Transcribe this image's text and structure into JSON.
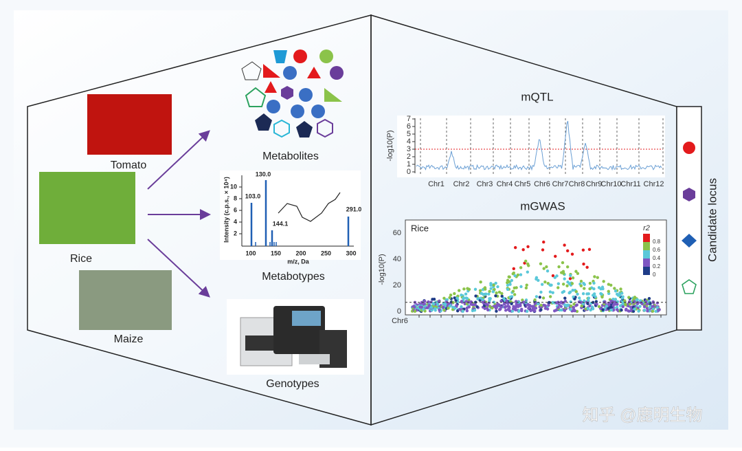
{
  "species": [
    {
      "label": "Tomato"
    },
    {
      "label": "Rice"
    },
    {
      "label": "Maize"
    }
  ],
  "outputs": {
    "metabolites": "Metabolites",
    "metabotypes": "Metabotypes",
    "genotypes": "Genotypes"
  },
  "spectrum": {
    "y_label": "Intensity (c.p.s., × 10⁴)",
    "x_label": "m/z, Da",
    "yticks": [
      "2",
      "4",
      "6",
      "8",
      "10"
    ],
    "xticks": [
      "100",
      "150",
      "200",
      "250",
      "300"
    ],
    "peaks": [
      "103.0",
      "130.0",
      "144.1",
      "291.0"
    ]
  },
  "mqtl": {
    "title": "mQTL",
    "y_label": "-log10(P)",
    "yticks": [
      "0",
      "1",
      "2",
      "3",
      "4",
      "5",
      "6",
      "7"
    ],
    "chromosomes": [
      "Chr1",
      "Chr2",
      "Chr3",
      "Chr4",
      "Chr5",
      "Chr6",
      "Chr7",
      "Chr8",
      "Chr9",
      "Chr10",
      "Chr11",
      "Chr12"
    ]
  },
  "mgwas": {
    "title": "mGWAS",
    "panel_label": "Rice",
    "y_label": "-log10(P)",
    "yticks": [
      "0",
      "20",
      "40",
      "60"
    ],
    "x_label": "Chr6",
    "legend_title": "r2",
    "legend_ticks": [
      "0.8",
      "0.6",
      "0.4",
      "0.2",
      "0"
    ]
  },
  "candidate": {
    "label": "Candidate locus"
  },
  "watermark": "知乎 @鹿明生物"
}
